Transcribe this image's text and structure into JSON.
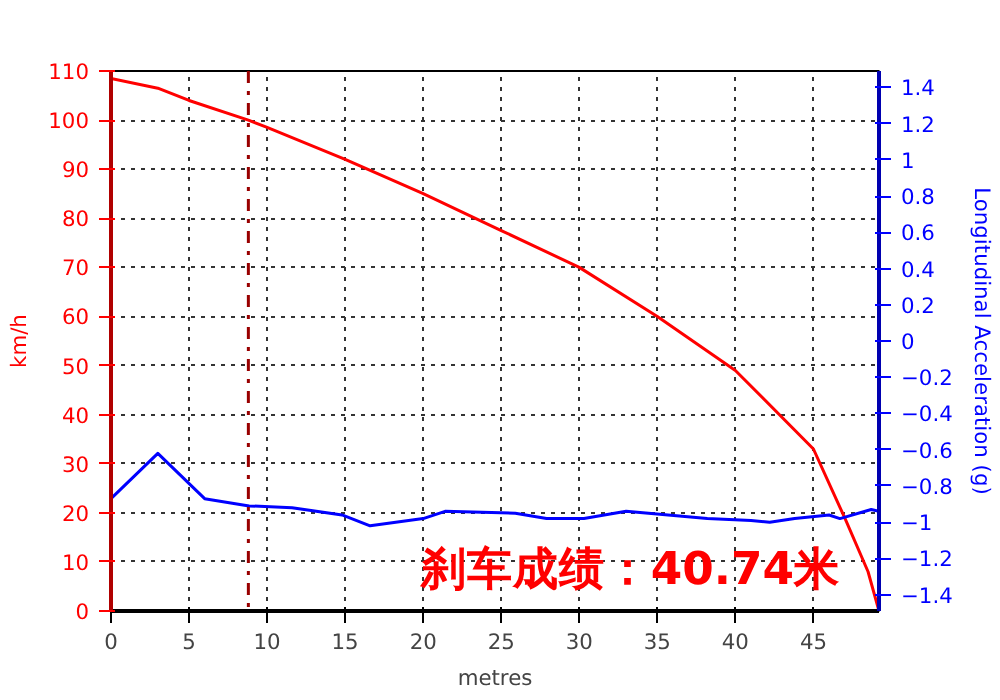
{
  "chart_data": {
    "type": "line",
    "xlabel": "metres",
    "ylabel": "km/h",
    "y2label": "Longitudinal Acceleration (g)",
    "xlim": [
      0,
      49.2
    ],
    "xticks": [
      0,
      5,
      10,
      15,
      20,
      25,
      30,
      35,
      40,
      45
    ],
    "ylim": [
      0,
      110
    ],
    "yticks": [
      0,
      10,
      20,
      30,
      40,
      50,
      60,
      70,
      80,
      90,
      100,
      110
    ],
    "y2lim": [
      -1.49,
      1.49
    ],
    "y2ticks": [
      -1.4,
      -1.2,
      -1,
      -0.8,
      -0.6,
      -0.4,
      -0.2,
      0,
      0.2,
      0.4,
      0.6,
      0.8,
      1,
      1.2,
      1.4
    ],
    "grid": true,
    "line_style": "solid",
    "series": [
      {
        "color": "#ff0000",
        "x": [
          0,
          3,
          5,
          8.8,
          10,
          15,
          20,
          25,
          30,
          35,
          40,
          45,
          47,
          48.5,
          49.2
        ],
        "values": [
          108.5,
          106.5,
          104,
          100,
          98.5,
          92,
          85,
          77.5,
          70,
          60,
          49,
          33,
          19,
          8,
          0
        ]
      },
      {
        "color": "#0000ff",
        "axis": "y2",
        "x": [
          0,
          3,
          6,
          8.85,
          11.6,
          14.8,
          16.6,
          20,
          21.4,
          25.9,
          27.9,
          30.3,
          33,
          38.2,
          41,
          42.2,
          43.8,
          46,
          46.7,
          48.7,
          49.2
        ],
        "values": [
          -0.87,
          -0.62,
          -0.87,
          -0.91,
          -0.92,
          -0.96,
          -1.02,
          -0.98,
          -0.94,
          -0.95,
          -0.98,
          -0.98,
          -0.94,
          -0.98,
          -0.99,
          -1.0,
          -0.98,
          -0.96,
          -0.98,
          -0.93,
          -0.94
        ]
      }
    ],
    "ref_lines": [
      {
        "axis": "x",
        "value": 8.8,
        "color": "#990000",
        "line_style": "dashdot"
      }
    ],
    "annotations": [
      "刹车成绩：40.74米"
    ]
  }
}
